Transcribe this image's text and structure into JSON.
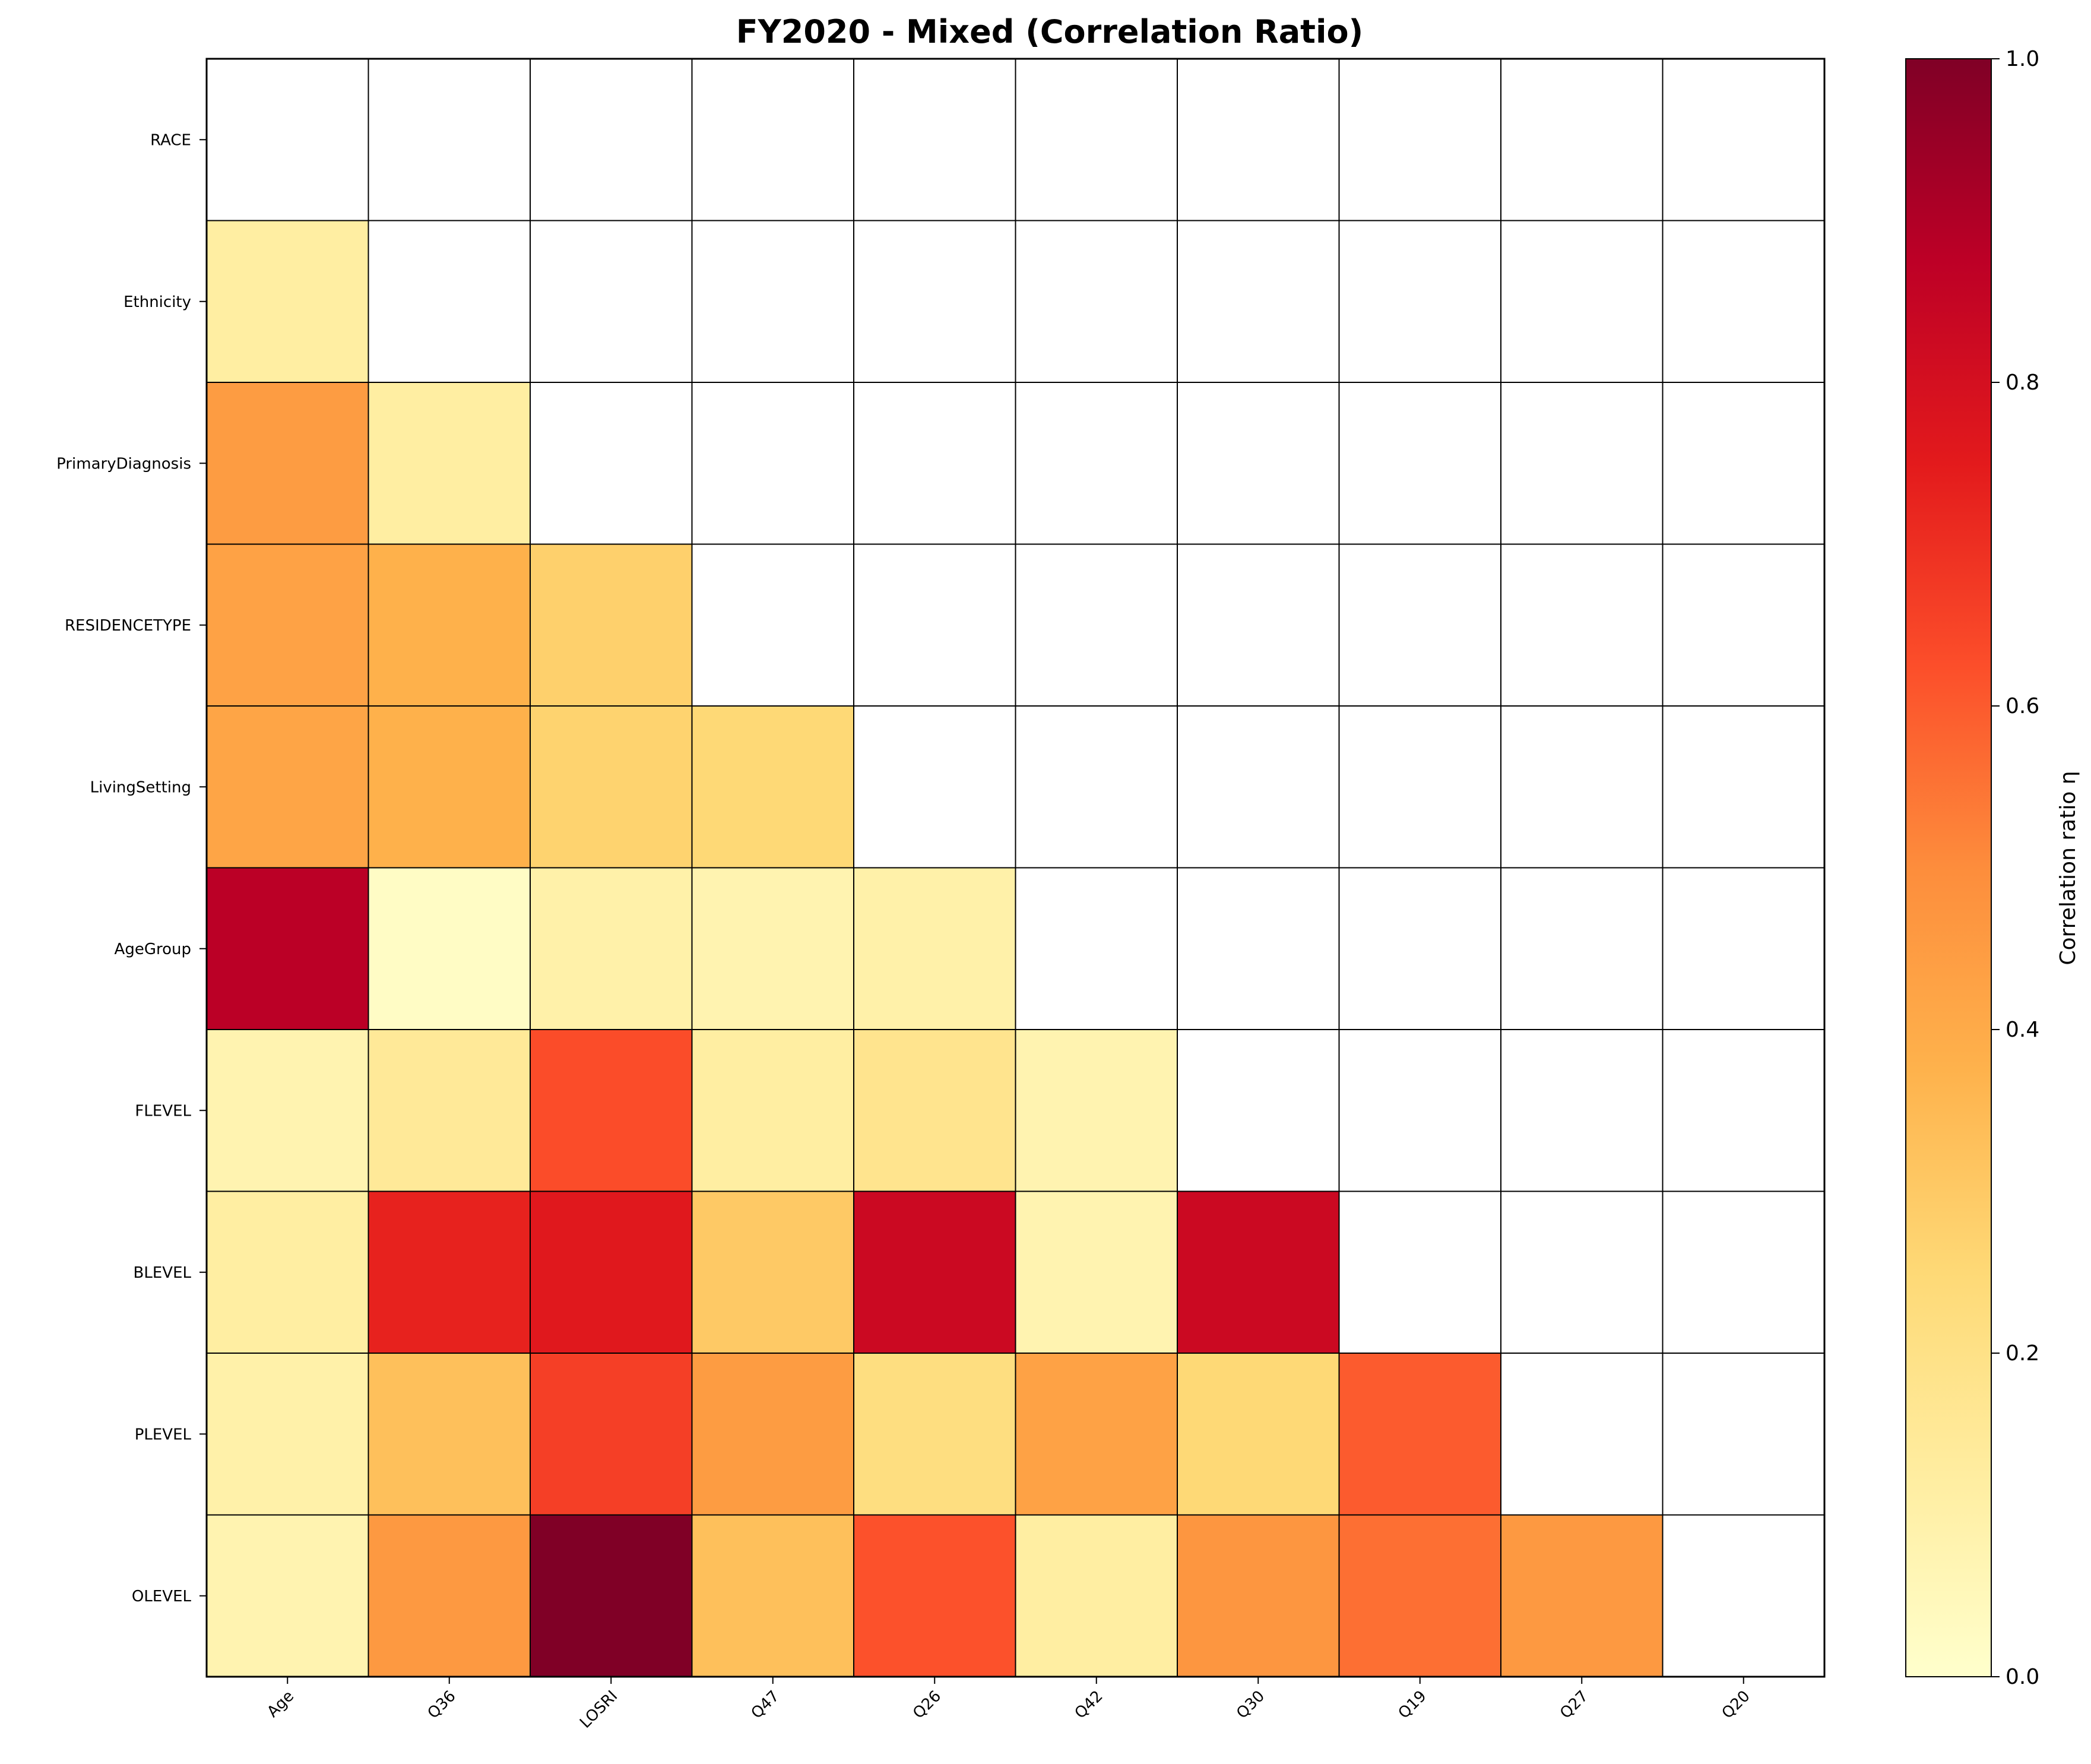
{
  "chart_data": {
    "type": "heatmap",
    "title": "FY2020  - Mixed (Correlation Ratio)",
    "rows": [
      "RACE",
      "Ethnicity",
      "PrimaryDiagnosis",
      "RESIDENCETYPE",
      "LivingSetting",
      "AgeGroup",
      "FLEVEL",
      "BLEVEL",
      "PLEVEL",
      "OLEVEL"
    ],
    "columns": [
      "Age",
      "Q36",
      "LOSRI",
      "Q47",
      "Q26",
      "Q42",
      "Q30",
      "Q19",
      "Q27",
      "Q20"
    ],
    "values": [
      [
        null,
        null,
        null,
        null,
        null,
        null,
        null,
        null,
        null,
        null
      ],
      [
        0.12,
        null,
        null,
        null,
        null,
        null,
        null,
        null,
        null,
        null
      ],
      [
        0.45,
        0.12,
        null,
        null,
        null,
        null,
        null,
        null,
        null,
        null
      ],
      [
        0.43,
        0.38,
        0.28,
        null,
        null,
        null,
        null,
        null,
        null,
        null
      ],
      [
        0.42,
        0.38,
        0.27,
        0.25,
        null,
        null,
        null,
        null,
        null,
        null
      ],
      [
        0.88,
        0.02,
        0.1,
        0.08,
        0.1,
        null,
        null,
        null,
        null,
        null
      ],
      [
        0.08,
        0.15,
        0.63,
        0.12,
        0.18,
        0.08,
        null,
        null,
        null,
        null
      ],
      [
        0.12,
        0.73,
        0.76,
        0.3,
        0.83,
        0.08,
        0.83,
        null,
        null,
        null
      ],
      [
        0.1,
        0.33,
        0.66,
        0.45,
        0.22,
        0.43,
        0.25,
        0.6,
        null,
        null
      ],
      [
        0.08,
        0.46,
        1.0,
        0.33,
        0.62,
        0.12,
        0.47,
        0.56,
        0.46,
        null
      ]
    ],
    "colormap": "YlOrRd",
    "vmin": 0.0,
    "vmax": 1.0,
    "colorbar": {
      "label": "Correlation ratio η",
      "ticks": [
        "0.0",
        "0.2",
        "0.4",
        "0.6",
        "0.8",
        "1.0"
      ]
    },
    "grid": true
  }
}
